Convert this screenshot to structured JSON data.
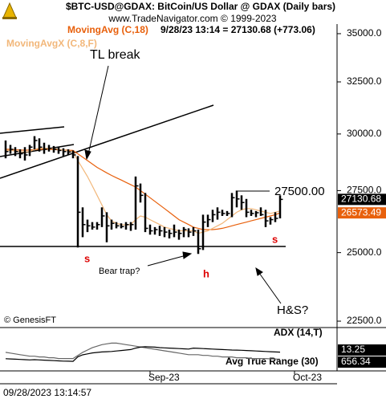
{
  "chart_data": [
    {
      "type": "hlc",
      "title": "$BTC-USD@GDAX:  BitCoin/US Dollar @ GDAX  (Daily bars)",
      "subtitle": "www.TradeNavigator.com © 1999-2023",
      "header": "9/28/23 13:14 = 27130.68 (+773.06)",
      "watermark": "© GenesisFT",
      "footer": "09/28/2023 13:14:57",
      "log_scale": true,
      "color": "#000000",
      "x": [
        0,
        1,
        2,
        3,
        4,
        5,
        6,
        7,
        8,
        9,
        10,
        11,
        12,
        13,
        14,
        15,
        16,
        17,
        18,
        19,
        20,
        21,
        22,
        23,
        24,
        25,
        26,
        27,
        28,
        29,
        30,
        31,
        32,
        33,
        34,
        35,
        36,
        37,
        38,
        39,
        40,
        41,
        42,
        43,
        44,
        45,
        46,
        47,
        48,
        49,
        50,
        51,
        52,
        53,
        54,
        55,
        56,
        57
      ],
      "high": [
        29700,
        29500,
        29400,
        29300,
        29400,
        29500,
        29900,
        29800,
        29600,
        29500,
        29450,
        29400,
        29350,
        29300,
        29250,
        29000,
        26800,
        26300,
        26200,
        26200,
        26800,
        26600,
        26300,
        26200,
        26150,
        26200,
        26200,
        28100,
        27800,
        27400,
        26100,
        26000,
        26050,
        26000,
        25900,
        26100,
        25900,
        26000,
        25950,
        26000,
        25900,
        26500,
        26500,
        26700,
        26800,
        26700,
        26650,
        27400,
        27500,
        27300,
        27150,
        26700,
        26650,
        26800,
        26700,
        26400,
        26600,
        27300
      ],
      "low": [
        28900,
        29100,
        29000,
        28900,
        28800,
        29000,
        29300,
        29200,
        29100,
        29200,
        29150,
        29100,
        29000,
        29050,
        28900,
        25200,
        25600,
        25800,
        25900,
        25900,
        26000,
        25400,
        25900,
        25950,
        25950,
        25900,
        25850,
        25900,
        27000,
        25800,
        25700,
        25700,
        25650,
        25600,
        25550,
        25600,
        25500,
        25600,
        25600,
        25650,
        24950,
        25100,
        26000,
        26200,
        26300,
        26450,
        26450,
        26400,
        26800,
        26700,
        26400,
        26450,
        26400,
        26450,
        26000,
        26100,
        26200,
        26350
      ],
      "close": [
        29200,
        29300,
        29200,
        29100,
        29050,
        29400,
        29700,
        29400,
        29300,
        29350,
        29300,
        29250,
        29200,
        29180,
        29050,
        26600,
        26100,
        26050,
        26000,
        26100,
        26450,
        26050,
        26150,
        26050,
        26020,
        26100,
        26100,
        27700,
        27300,
        25950,
        25850,
        25900,
        25850,
        25800,
        25750,
        25800,
        25750,
        25900,
        25800,
        25850,
        25150,
        26200,
        26300,
        26500,
        26600,
        26550,
        26550,
        27200,
        27150,
        27000,
        26600,
        26550,
        26580,
        26500,
        26250,
        26300,
        26350,
        27130.68
      ],
      "series": [
        {
          "name": "MovingAvg (C,18)",
          "color": "#e8600c",
          "values": [
            29300,
            29300,
            29280,
            29270,
            29260,
            29270,
            29290,
            29300,
            29300,
            29300,
            29290,
            29280,
            29270,
            29260,
            29250,
            29100,
            28950,
            28800,
            28650,
            28500,
            28380,
            28260,
            28150,
            28050,
            27950,
            27850,
            27750,
            27650,
            27500,
            27350,
            27200,
            27050,
            26900,
            26750,
            26600,
            26450,
            26300,
            26200,
            26100,
            26000,
            25950,
            25900,
            25900,
            25900,
            25920,
            25950,
            26000,
            26050,
            26100,
            26150,
            26200,
            26250,
            26300,
            26350,
            26400,
            26450,
            26500,
            26573.49
          ]
        },
        {
          "name": "MovingAvgX (C,8,F)",
          "color": "#f2b77a",
          "values": [
            29250,
            29250,
            29230,
            29200,
            29180,
            29200,
            29300,
            29350,
            29350,
            29350,
            29330,
            29300,
            29270,
            29230,
            29180,
            28800,
            28450,
            28100,
            27700,
            27300,
            26900,
            26500,
            26250,
            26150,
            26100,
            26080,
            26100,
            26300,
            26450,
            26400,
            26300,
            26200,
            26100,
            26000,
            25950,
            25900,
            25850,
            25850,
            25850,
            25850,
            25750,
            25800,
            25850,
            25950,
            26050,
            26150,
            26300,
            26450,
            26600,
            26700,
            26750,
            26750,
            26700,
            26650,
            26600,
            26550,
            26600,
            26650
          ]
        }
      ],
      "xlim": [
        -1,
        69
      ],
      "ylim": [
        22280,
        35520
      ],
      "yticks": [
        {
          "value": 35000,
          "label": "35000.0"
        },
        {
          "value": 32500,
          "label": "32500.0"
        },
        {
          "value": 30000,
          "label": "30000.0"
        },
        {
          "value": 27500,
          "label": "27500.0"
        },
        {
          "value": 25000,
          "label": "25000.0"
        },
        {
          "value": 22500,
          "label": "22500.0"
        }
      ],
      "annotations": [
        "TL break",
        "Bear trap?",
        "H&S?",
        "s",
        "h",
        "s",
        "27500.00"
      ]
    },
    {
      "type": "line",
      "x": [
        0,
        1,
        2,
        3,
        4,
        5,
        6,
        7,
        8,
        9,
        10,
        11,
        12,
        13,
        14,
        15,
        16,
        17,
        18,
        19,
        20,
        21,
        22,
        23,
        24,
        25,
        26,
        27,
        28,
        29,
        30,
        31,
        32,
        33,
        34,
        35,
        36,
        37,
        38,
        39,
        40,
        41,
        42,
        43,
        44,
        45,
        46,
        47,
        48,
        49,
        50,
        51,
        52,
        53,
        54,
        55,
        56,
        57
      ],
      "series": [
        {
          "name": "ADX (14,T)",
          "color": "#666666",
          "values": [
            22,
            21,
            20,
            19,
            18,
            17,
            17,
            16,
            16,
            15,
            15,
            14,
            14,
            14,
            14,
            18,
            22,
            25,
            28,
            30,
            32,
            33,
            34,
            34,
            33,
            32,
            31,
            30,
            29,
            28,
            27,
            26,
            25,
            24,
            23,
            22,
            21,
            20,
            19,
            19,
            19,
            18,
            18,
            17,
            17,
            16,
            16,
            16,
            15,
            15,
            15,
            14,
            14,
            14,
            14,
            13.5,
            13.3,
            13.25
          ]
        },
        {
          "name": "Avg True Range (30)",
          "color": "#000000",
          "axis": "y2",
          "values": [
            520,
            515,
            510,
            505,
            500,
            495,
            500,
            495,
            490,
            485,
            480,
            475,
            470,
            468,
            465,
            560,
            600,
            620,
            640,
            650,
            660,
            665,
            670,
            680,
            690,
            700,
            710,
            740,
            760,
            770,
            765,
            760,
            750,
            745,
            740,
            735,
            730,
            725,
            720,
            740,
            735,
            730,
            725,
            720,
            715,
            710,
            705,
            700,
            698,
            695,
            690,
            685,
            680,
            675,
            670,
            665,
            660,
            656.34
          ]
        }
      ],
      "xlim": [
        -1,
        69
      ],
      "ylim": [
        0,
        50
      ],
      "y2lim": [
        300,
        1100
      ],
      "xticks": [
        {
          "value": 30,
          "label": "Sep-23"
        },
        {
          "value": 60,
          "label": "Oct-23"
        }
      ]
    }
  ]
}
